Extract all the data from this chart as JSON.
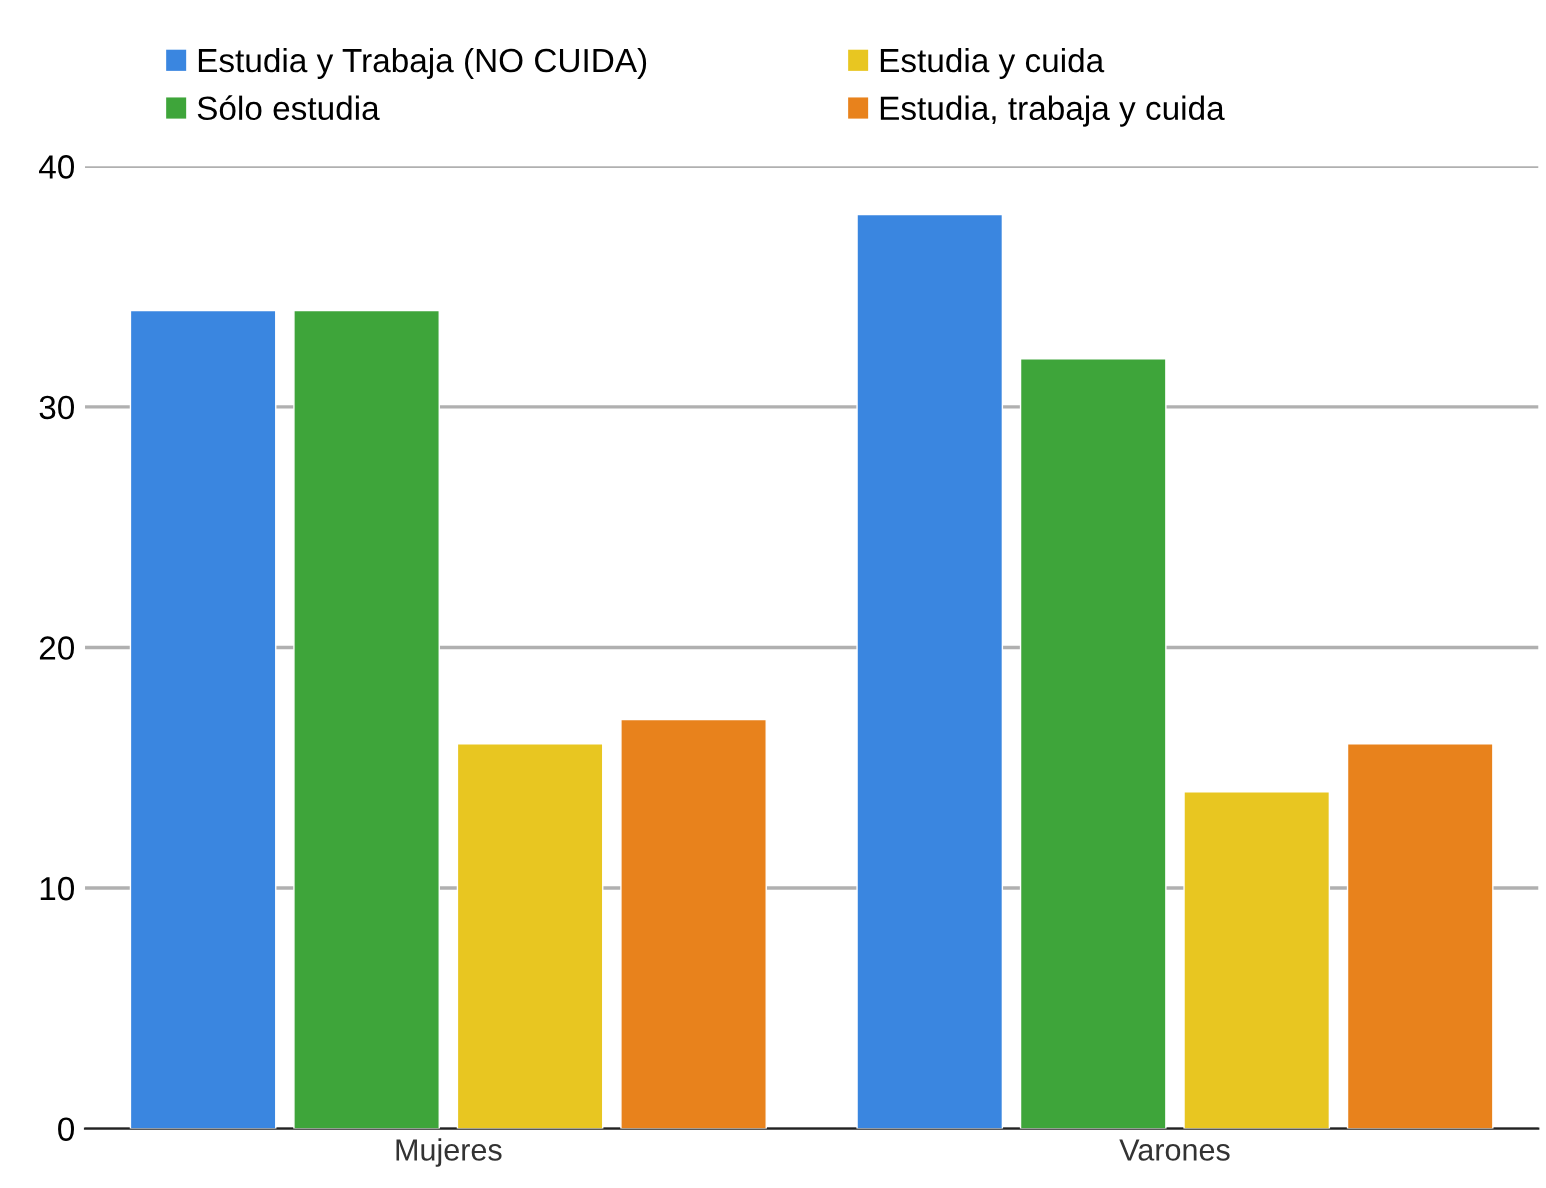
{
  "chart_data": {
    "type": "bar",
    "categories": [
      "Mujeres",
      "Varones"
    ],
    "series": [
      {
        "name": "Estudia y Trabaja (NO CUIDA)",
        "color": "#3a86e0",
        "values": [
          34,
          38
        ]
      },
      {
        "name": "Sólo estudia",
        "color": "#3ea53a",
        "values": [
          34,
          32
        ]
      },
      {
        "name": "Estudia y cuida",
        "color": "#e8c621",
        "values": [
          16,
          14
        ]
      },
      {
        "name": "Estudia, trabaja y cuida",
        "color": "#e8821c",
        "values": [
          17,
          16
        ]
      }
    ],
    "ylim": [
      0,
      40
    ],
    "yticks": [
      0,
      10,
      20,
      30,
      40
    ],
    "grid": "y",
    "legend": "top"
  }
}
